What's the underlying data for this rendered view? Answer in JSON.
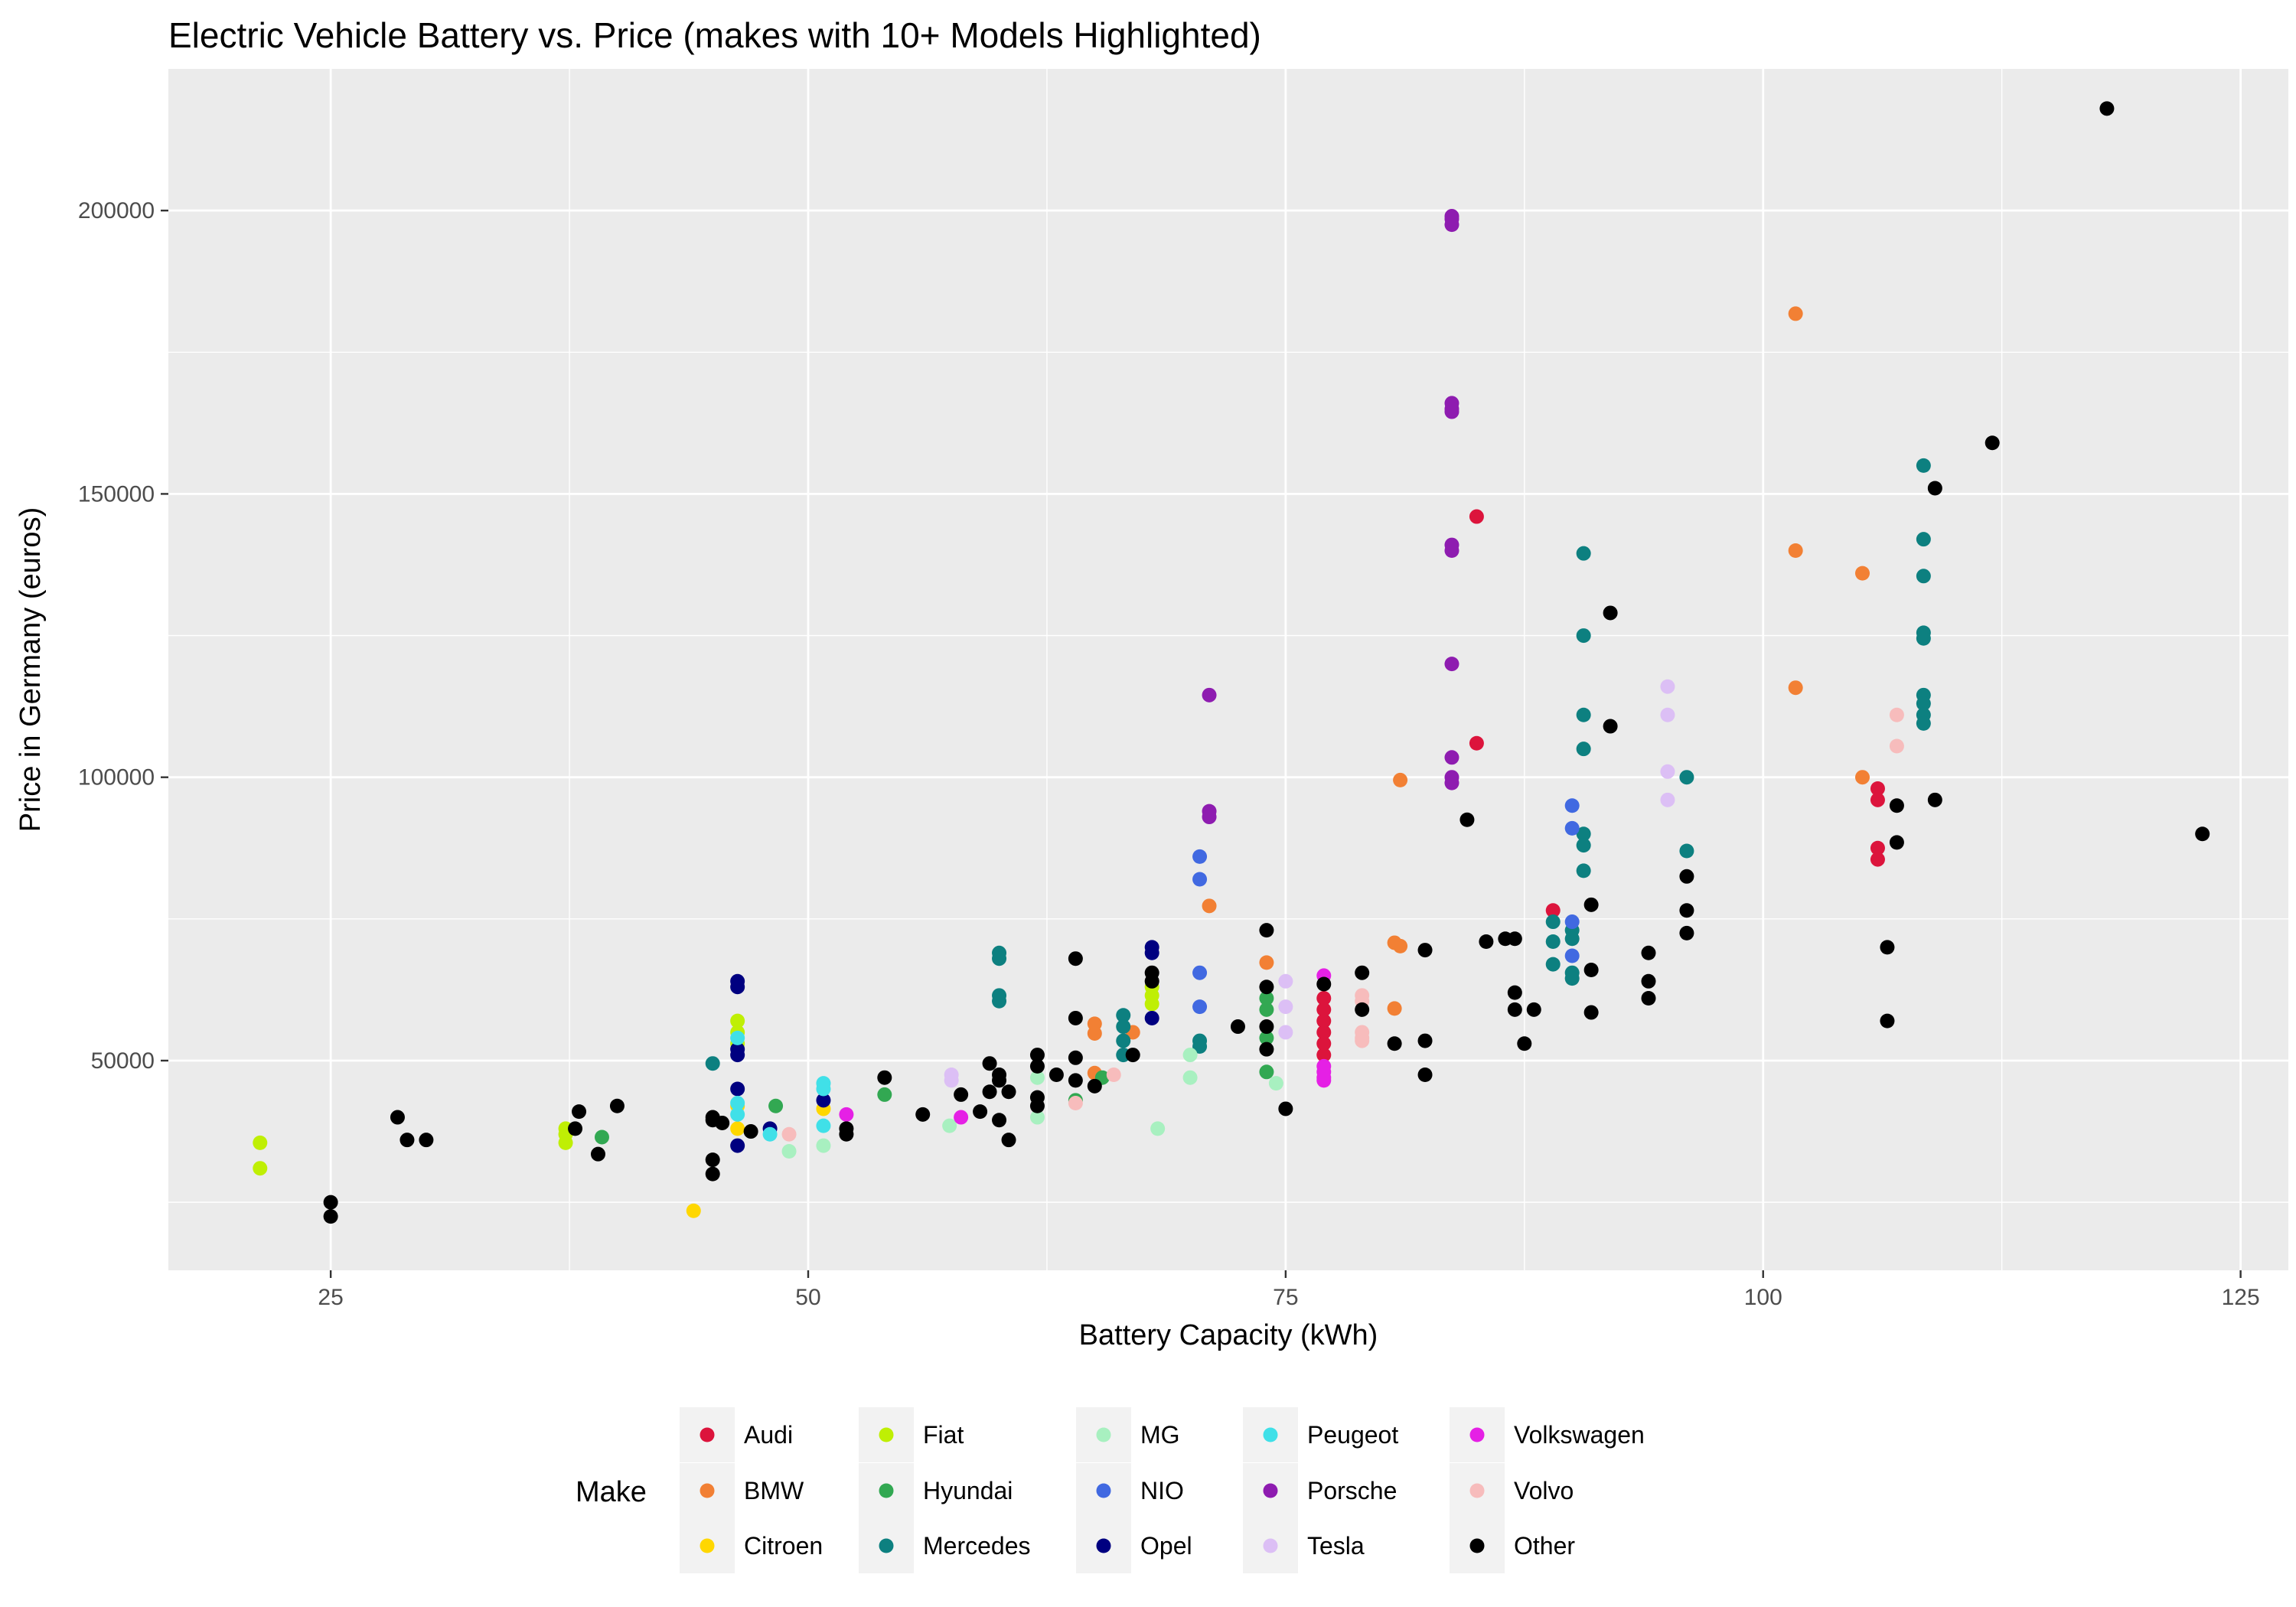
{
  "chart_data": {
    "type": "scatter",
    "title": "Electric Vehicle Battery vs. Price (makes with 10+ Models Highlighted)",
    "xlabel": "Battery Capacity (kWh)",
    "ylabel": "Price in Germany (euros)",
    "xlim": [
      16.5,
      127.5
    ],
    "ylim": [
      13000,
      225000
    ],
    "x_ticks": [
      25,
      50,
      75,
      100,
      125
    ],
    "y_ticks": [
      50000,
      100000,
      150000,
      200000
    ],
    "grid": true,
    "legend_title": "Make",
    "legend_placement": "bottom",
    "series": [
      {
        "name": "Audi",
        "color": "#dc143c",
        "points": [
          [
            77,
            51000
          ],
          [
            77,
            53000
          ],
          [
            77,
            55000
          ],
          [
            77,
            57000
          ],
          [
            77,
            59000
          ],
          [
            77,
            61000
          ],
          [
            89,
            76500
          ],
          [
            85,
            146000
          ],
          [
            85,
            106000
          ],
          [
            106,
            98000
          ],
          [
            106,
            96000
          ],
          [
            106,
            87500
          ],
          [
            106,
            85500
          ]
        ]
      },
      {
        "name": "BMW",
        "color": "#f28034",
        "points": [
          [
            101.7,
            181800
          ],
          [
            101.7,
            140000
          ],
          [
            101.7,
            115800
          ],
          [
            105.2,
            136000
          ],
          [
            105.2,
            100000
          ],
          [
            81,
            99500
          ],
          [
            71,
            77300
          ],
          [
            80.7,
            70800
          ],
          [
            81,
            70200
          ],
          [
            74,
            67300
          ],
          [
            80.7,
            59200
          ],
          [
            65,
            56500
          ],
          [
            65,
            54800
          ],
          [
            65,
            47800
          ],
          [
            67,
            55000
          ]
        ]
      },
      {
        "name": "Citroen",
        "color": "#ffd700",
        "points": [
          [
            44,
            23500
          ],
          [
            46.3,
            38000
          ],
          [
            46.3,
            42000
          ],
          [
            50.8,
            41500
          ]
        ]
      },
      {
        "name": "Fiat",
        "color": "#bfef04",
        "points": [
          [
            21.3,
            35500
          ],
          [
            21.3,
            31000
          ],
          [
            37.3,
            38000
          ],
          [
            37.3,
            37000
          ],
          [
            37.3,
            35500
          ],
          [
            46.3,
            53000
          ],
          [
            46.3,
            55000
          ],
          [
            46.3,
            57000
          ],
          [
            68,
            63000
          ],
          [
            68,
            61500
          ],
          [
            68,
            60000
          ]
        ]
      },
      {
        "name": "Hyundai",
        "color": "#32a852",
        "points": [
          [
            39.2,
            36500
          ],
          [
            48.3,
            42000
          ],
          [
            54,
            44000
          ],
          [
            64,
            43000
          ],
          [
            65.4,
            47000
          ],
          [
            74,
            54000
          ],
          [
            74,
            59000
          ],
          [
            74,
            61000
          ],
          [
            74,
            48000
          ]
        ]
      },
      {
        "name": "Mercedes",
        "color": "#0d8080",
        "points": [
          [
            45,
            49500
          ],
          [
            60,
            69000
          ],
          [
            60,
            68000
          ],
          [
            60,
            61500
          ],
          [
            60,
            60500
          ],
          [
            66.5,
            58000
          ],
          [
            66.5,
            56000
          ],
          [
            66.5,
            53500
          ],
          [
            66.5,
            51000
          ],
          [
            70.5,
            53500
          ],
          [
            70.5,
            52500
          ],
          [
            89,
            74500
          ],
          [
            89,
            71000
          ],
          [
            89,
            67000
          ],
          [
            90,
            73000
          ],
          [
            90,
            71500
          ],
          [
            90,
            65500
          ],
          [
            90,
            64500
          ],
          [
            90.6,
            139500
          ],
          [
            90.6,
            125000
          ],
          [
            90.6,
            111000
          ],
          [
            90.6,
            105000
          ],
          [
            90.6,
            90000
          ],
          [
            90.6,
            88000
          ],
          [
            90.6,
            83500
          ],
          [
            96,
            100000
          ],
          [
            96,
            87000
          ],
          [
            108.4,
            155000
          ],
          [
            108.4,
            142000
          ],
          [
            108.4,
            135500
          ],
          [
            108.4,
            125500
          ],
          [
            108.4,
            124500
          ],
          [
            108.4,
            114500
          ],
          [
            108.4,
            113000
          ],
          [
            108.4,
            111000
          ],
          [
            108.4,
            109500
          ]
        ]
      },
      {
        "name": "MG",
        "color": "#a8f0c0",
        "points": [
          [
            49,
            34000
          ],
          [
            50.8,
            35000
          ],
          [
            57.4,
            38500
          ],
          [
            62,
            40000
          ],
          [
            62,
            47000
          ],
          [
            68.3,
            38000
          ],
          [
            70,
            47000
          ],
          [
            70,
            51000
          ],
          [
            74.5,
            46000
          ]
        ]
      },
      {
        "name": "NIO",
        "color": "#4169e1",
        "points": [
          [
            70.5,
            86000
          ],
          [
            70.5,
            82000
          ],
          [
            70.5,
            65500
          ],
          [
            70.5,
            59500
          ],
          [
            90,
            95000
          ],
          [
            90,
            91000
          ],
          [
            90,
            74500
          ],
          [
            90,
            68500
          ]
        ]
      },
      {
        "name": "Opel",
        "color": "#000080",
        "points": [
          [
            46.3,
            64000
          ],
          [
            46.3,
            63000
          ],
          [
            46.3,
            52000
          ],
          [
            46.3,
            51000
          ],
          [
            46.3,
            45000
          ],
          [
            46.3,
            35000
          ],
          [
            48,
            38000
          ],
          [
            50.8,
            43000
          ],
          [
            68,
            70000
          ],
          [
            68,
            69000
          ],
          [
            68,
            57500
          ]
        ]
      },
      {
        "name": "Peugeot",
        "color": "#40e0e8",
        "points": [
          [
            46.3,
            54000
          ],
          [
            46.3,
            42500
          ],
          [
            46.3,
            40500
          ],
          [
            48,
            37000
          ],
          [
            50.8,
            46000
          ],
          [
            50.8,
            45000
          ],
          [
            50.8,
            38500
          ]
        ]
      },
      {
        "name": "Porsche",
        "color": "#8e1cb0",
        "points": [
          [
            83.7,
            199000
          ],
          [
            83.7,
            198500
          ],
          [
            83.7,
            197500
          ],
          [
            83.7,
            166000
          ],
          [
            83.7,
            165000
          ],
          [
            83.7,
            164500
          ],
          [
            83.7,
            141000
          ],
          [
            83.7,
            140000
          ],
          [
            83.7,
            120000
          ],
          [
            83.7,
            103500
          ],
          [
            83.7,
            100000
          ],
          [
            83.7,
            99000
          ],
          [
            71,
            114500
          ],
          [
            71,
            94000
          ],
          [
            71,
            93000
          ]
        ]
      },
      {
        "name": "Tesla",
        "color": "#dcbff5",
        "points": [
          [
            57.5,
            47500
          ],
          [
            57.5,
            46500
          ],
          [
            75,
            64000
          ],
          [
            75,
            59500
          ],
          [
            75,
            55000
          ],
          [
            95,
            116000
          ],
          [
            95,
            111000
          ],
          [
            95,
            101000
          ],
          [
            95,
            96000
          ]
        ]
      },
      {
        "name": "Volkswagen",
        "color": "#e520e5",
        "points": [
          [
            52,
            40500
          ],
          [
            58,
            40000
          ],
          [
            77,
            65000
          ],
          [
            77,
            49000
          ],
          [
            77,
            48000
          ],
          [
            77,
            47000
          ],
          [
            77,
            46500
          ]
        ]
      },
      {
        "name": "Volvo",
        "color": "#f7bcbc",
        "points": [
          [
            49,
            37000
          ],
          [
            64,
            42500
          ],
          [
            66,
            47500
          ],
          [
            79,
            61500
          ],
          [
            79,
            60500
          ],
          [
            79,
            55000
          ],
          [
            79,
            54000
          ],
          [
            79,
            53500
          ],
          [
            107,
            111000
          ],
          [
            107,
            105500
          ]
        ]
      },
      {
        "name": "Other",
        "color": "#000000",
        "points": [
          [
            25,
            25000
          ],
          [
            25,
            22500
          ],
          [
            28.5,
            40000
          ],
          [
            29,
            36000
          ],
          [
            30,
            36000
          ],
          [
            37.8,
            38000
          ],
          [
            38,
            41000
          ],
          [
            39,
            33500
          ],
          [
            40,
            42000
          ],
          [
            45,
            40000
          ],
          [
            45,
            39500
          ],
          [
            45,
            32500
          ],
          [
            45,
            30000
          ],
          [
            45.5,
            39000
          ],
          [
            47,
            37500
          ],
          [
            52,
            38000
          ],
          [
            52,
            37000
          ],
          [
            54,
            47000
          ],
          [
            56,
            40500
          ],
          [
            58,
            44000
          ],
          [
            59,
            41000
          ],
          [
            59.5,
            44500
          ],
          [
            59.5,
            49500
          ],
          [
            60,
            47500
          ],
          [
            60,
            46500
          ],
          [
            60,
            39500
          ],
          [
            60.5,
            36000
          ],
          [
            60.5,
            44500
          ],
          [
            62,
            51000
          ],
          [
            62,
            49000
          ],
          [
            62,
            43500
          ],
          [
            62,
            42000
          ],
          [
            63,
            47500
          ],
          [
            64,
            57500
          ],
          [
            64,
            68000
          ],
          [
            64,
            50500
          ],
          [
            64,
            46500
          ],
          [
            65,
            45500
          ],
          [
            67,
            51000
          ],
          [
            68,
            65500
          ],
          [
            68,
            64000
          ],
          [
            72.5,
            56000
          ],
          [
            74,
            73000
          ],
          [
            74,
            63000
          ],
          [
            74,
            56000
          ],
          [
            74,
            52000
          ],
          [
            75,
            41500
          ],
          [
            77,
            63500
          ],
          [
            79,
            65500
          ],
          [
            79,
            59000
          ],
          [
            80.7,
            53000
          ],
          [
            82.3,
            53500
          ],
          [
            82.3,
            47500
          ],
          [
            82.3,
            69500
          ],
          [
            84.5,
            92500
          ],
          [
            85.5,
            71000
          ],
          [
            86.5,
            71500
          ],
          [
            87,
            71500
          ],
          [
            87,
            62000
          ],
          [
            87,
            59000
          ],
          [
            87.5,
            53000
          ],
          [
            88,
            59000
          ],
          [
            91,
            77500
          ],
          [
            91,
            66000
          ],
          [
            91,
            58500
          ],
          [
            92,
            129000
          ],
          [
            92,
            109000
          ],
          [
            94,
            69000
          ],
          [
            94,
            64000
          ],
          [
            94,
            61000
          ],
          [
            96,
            82500
          ],
          [
            96,
            76500
          ],
          [
            96,
            72500
          ],
          [
            106.5,
            70000
          ],
          [
            106.5,
            57000
          ],
          [
            107,
            95000
          ],
          [
            107,
            88500
          ],
          [
            109,
            151000
          ],
          [
            109,
            96000
          ],
          [
            112,
            159000
          ],
          [
            118,
            218000
          ],
          [
            123,
            90000
          ]
        ]
      }
    ]
  }
}
